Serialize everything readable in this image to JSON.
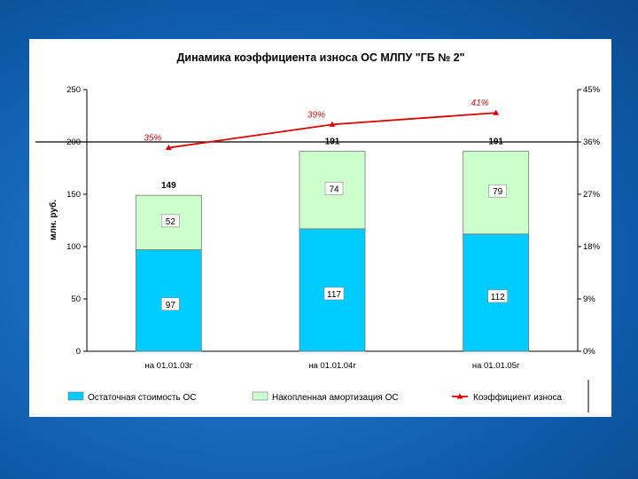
{
  "chart_data": {
    "type": "bar",
    "title": "Динамика коэффициента износа ОС МЛПУ \"ГБ № 2\"",
    "ylabel": "млн. руб.",
    "ylim": [
      0,
      250
    ],
    "y_ticks": [
      "0",
      "50",
      "100",
      "150",
      "200",
      "250"
    ],
    "y2lim": [
      0,
      45
    ],
    "y2_ticks": [
      "0%",
      "9%",
      "18%",
      "27%",
      "36%",
      "45%"
    ],
    "categories": [
      "на 01.01.03г",
      "на 01.01.04г",
      "на 01.01.05г"
    ],
    "series": [
      {
        "name": "Остаточная стоимость ОС",
        "values": [
          97,
          117,
          112
        ],
        "labels": [
          "97",
          "117",
          "112"
        ],
        "color": "#00ccff"
      },
      {
        "name": "Накопленная амортизация ОС",
        "values": [
          52,
          74,
          79
        ],
        "labels": [
          "52",
          "74",
          "79"
        ],
        "color": "#ccffcc"
      }
    ],
    "totals": [
      "149",
      "191",
      "191"
    ],
    "line_series": {
      "name": "Коэффициент износа",
      "values": [
        35,
        39,
        41
      ],
      "labels": [
        "35%",
        "39%",
        "41%"
      ],
      "color": "#dd0000"
    },
    "reference_line_y": 200,
    "legend_position": "bottom",
    "grid": false
  }
}
